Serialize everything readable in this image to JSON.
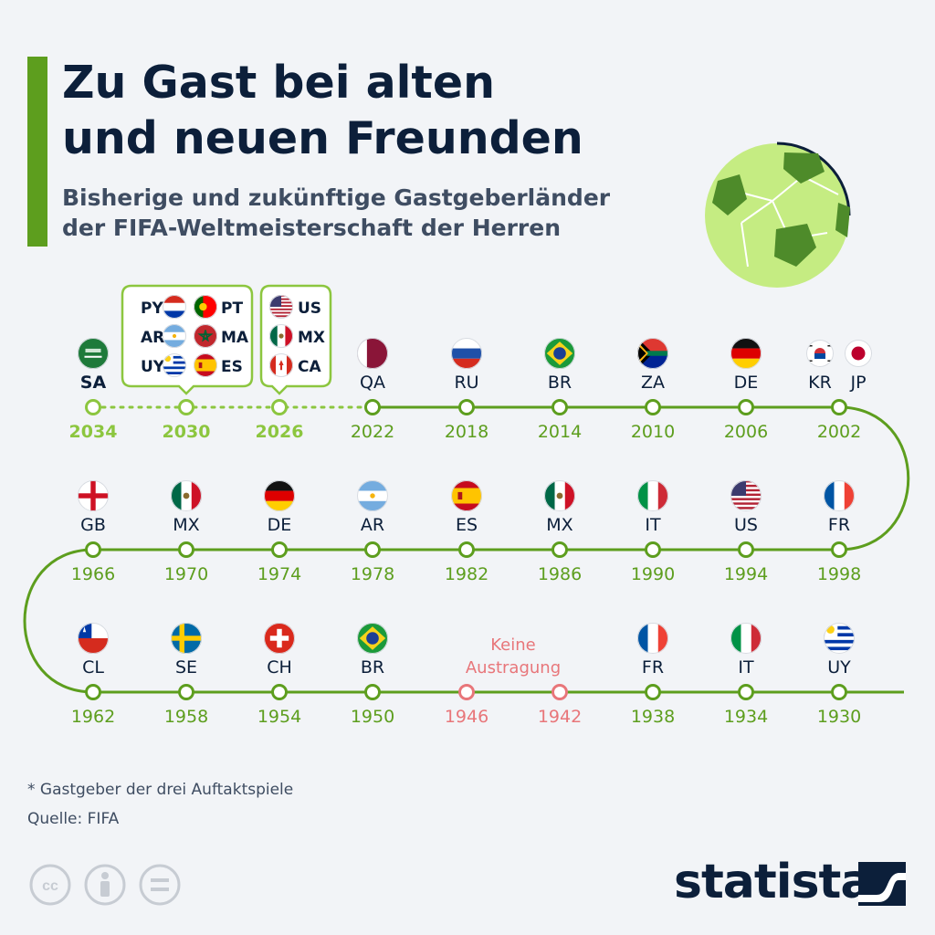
{
  "title": "Zu Gast bei alten\nund neuen Freunden",
  "subtitle": "Bisherige und zukünftige Gastgeberländer\nder FIFA-Weltmeisterschaft der Herren",
  "footnote": "* Gastgeber der drei Auftaktspiele",
  "source": "Quelle: FIFA",
  "brand": "statista",
  "colors": {
    "green": "#5d9e1e",
    "future": "#8cc63f",
    "none": "#e8767a",
    "navy": "#0c1f3a"
  },
  "no_event_label": "Keine\nAustragung",
  "tournaments": [
    {
      "year": "2034",
      "code": "SA",
      "status": "future"
    },
    {
      "year": "2030",
      "code": "",
      "status": "future",
      "hosts": [
        {
          "code": "PY*",
          "flag": "PY"
        },
        {
          "code": "PT",
          "flag": "PT"
        },
        {
          "code": "AR*",
          "flag": "AR"
        },
        {
          "code": "MA",
          "flag": "MA"
        },
        {
          "code": "UY*",
          "flag": "UY"
        },
        {
          "code": "ES",
          "flag": "ES"
        }
      ]
    },
    {
      "year": "2026",
      "code": "",
      "status": "future",
      "hosts": [
        {
          "code": "US",
          "flag": "US"
        },
        {
          "code": "MX",
          "flag": "MX"
        },
        {
          "code": "CA",
          "flag": "CA"
        }
      ]
    },
    {
      "year": "2022",
      "code": "QA",
      "status": "past"
    },
    {
      "year": "2018",
      "code": "RU",
      "status": "past"
    },
    {
      "year": "2014",
      "code": "BR",
      "status": "past"
    },
    {
      "year": "2010",
      "code": "ZA",
      "status": "past"
    },
    {
      "year": "2006",
      "code": "DE",
      "status": "past"
    },
    {
      "year": "2002",
      "code": "KR JP",
      "status": "past",
      "flags": [
        "KR",
        "JP"
      ],
      "codes": [
        "KR",
        "JP"
      ]
    },
    {
      "year": "1998",
      "code": "FR",
      "status": "past"
    },
    {
      "year": "1994",
      "code": "US",
      "status": "past"
    },
    {
      "year": "1990",
      "code": "IT",
      "status": "past"
    },
    {
      "year": "1986",
      "code": "MX",
      "status": "past"
    },
    {
      "year": "1982",
      "code": "ES",
      "status": "past"
    },
    {
      "year": "1978",
      "code": "AR",
      "status": "past"
    },
    {
      "year": "1974",
      "code": "DE",
      "status": "past"
    },
    {
      "year": "1970",
      "code": "MX",
      "status": "past"
    },
    {
      "year": "1966",
      "code": "GB",
      "status": "past"
    },
    {
      "year": "1962",
      "code": "CL",
      "status": "past"
    },
    {
      "year": "1958",
      "code": "SE",
      "status": "past"
    },
    {
      "year": "1954",
      "code": "CH",
      "status": "past"
    },
    {
      "year": "1950",
      "code": "BR",
      "status": "past"
    },
    {
      "year": "1946",
      "code": "",
      "status": "none"
    },
    {
      "year": "1942",
      "code": "",
      "status": "none"
    },
    {
      "year": "1938",
      "code": "FR",
      "status": "past"
    },
    {
      "year": "1934",
      "code": "IT",
      "status": "past"
    },
    {
      "year": "1930",
      "code": "UY",
      "status": "past"
    }
  ]
}
